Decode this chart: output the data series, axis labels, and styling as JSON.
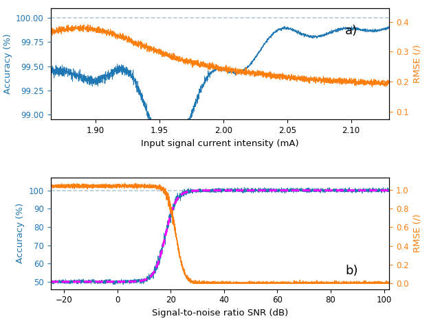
{
  "panel_a": {
    "x_min": 1.865,
    "x_max": 2.13,
    "acc_ylim": [
      98.95,
      100.1
    ],
    "acc_yticks": [
      99.0,
      99.25,
      99.5,
      99.75,
      100.0
    ],
    "rmse_ylim": [
      0.075,
      0.445
    ],
    "rmse_yticks": [
      0.1,
      0.2,
      0.3,
      0.4
    ],
    "xlabel": "Input signal current intensity (mA)",
    "ylabel_left": "Accuracy (%)",
    "ylabel_right": "RMSE (/)",
    "dashed_line_y": 100.0,
    "label": "a)",
    "acc_color": "#1f77b4",
    "rmse_color": "#ff7f0e",
    "dashed_color": "#aec6cf"
  },
  "panel_b": {
    "x_min": -25,
    "x_max": 102,
    "acc_ylim": [
      46,
      107
    ],
    "acc_yticks": [
      50,
      60,
      70,
      80,
      90,
      100
    ],
    "rmse_ylim": [
      -0.06,
      1.13
    ],
    "rmse_yticks": [
      0.0,
      0.2,
      0.4,
      0.6,
      0.8,
      1.0
    ],
    "xlabel": "Signal-to-noise ratio SNR (dB)",
    "ylabel_left": "Accuracy (%)",
    "ylabel_right": "RMSE (/)",
    "dashed_line_y": 100.0,
    "label": "b)",
    "acc_color": "#1f77b4",
    "rmse_color": "#ff7f0e",
    "fit_color": "#ff00ff",
    "dashed_color": "#aec6cf"
  }
}
